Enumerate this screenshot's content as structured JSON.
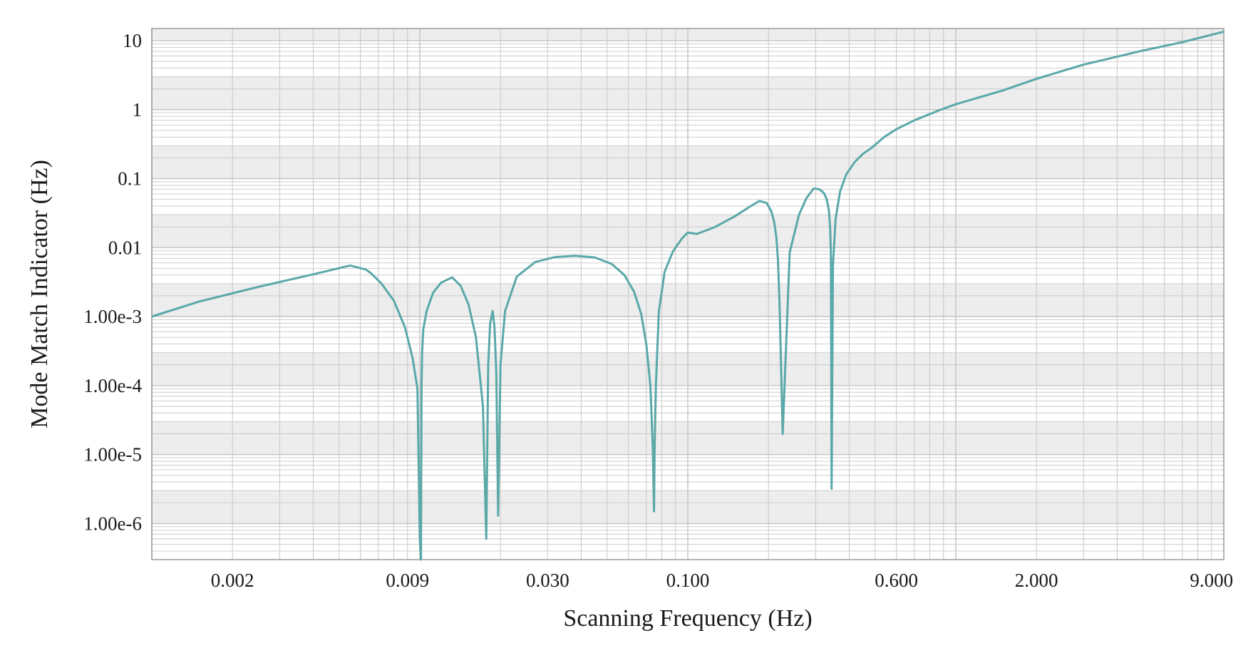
{
  "chart_data": {
    "type": "line",
    "title": "",
    "xlabel": "Scanning Frequency (Hz)",
    "ylabel": "Mode Match Indicator (Hz)",
    "x_scale": "log",
    "y_scale": "log",
    "xlim": [
      0.001,
      10
    ],
    "ylim": [
      3e-07,
      15
    ],
    "grid": true,
    "legend": "none",
    "line_color": "#5aa8a8",
    "band_color": "#ededed",
    "grid_color": "#c8c8c8",
    "x_ticks": [
      {
        "value": 0.002,
        "label": "0.002"
      },
      {
        "value": 0.009,
        "label": "0.009"
      },
      {
        "value": 0.03,
        "label": "0.030"
      },
      {
        "value": 0.1,
        "label": "0.100"
      },
      {
        "value": 0.6,
        "label": "0.600"
      },
      {
        "value": 2,
        "label": "2.000"
      },
      {
        "value": 9,
        "label": "9.000"
      }
    ],
    "y_ticks": [
      {
        "value": 10,
        "label": "10"
      },
      {
        "value": 1,
        "label": "1"
      },
      {
        "value": 0.1,
        "label": "0.1"
      },
      {
        "value": 0.01,
        "label": "0.01"
      },
      {
        "value": 0.001,
        "label": "1.00e-3"
      },
      {
        "value": 0.0001,
        "label": "1.00e-4"
      },
      {
        "value": 1e-05,
        "label": "1.00e-5"
      },
      {
        "value": 1e-06,
        "label": "1.00e-6"
      }
    ],
    "series": [
      {
        "x": [
          0.001,
          0.0015,
          0.0025,
          0.004,
          0.0055,
          0.0063,
          0.0066,
          0.0072,
          0.008,
          0.0088,
          0.0094,
          0.0098,
          0.01,
          0.0101,
          0.01015,
          0.0102,
          0.0103,
          0.0106,
          0.0112,
          0.012,
          0.0132,
          0.0142,
          0.0152,
          0.0162,
          0.0172,
          0.0177,
          0.018,
          0.0183,
          0.0187,
          0.019,
          0.0193,
          0.0196,
          0.02,
          0.0208,
          0.023,
          0.027,
          0.032,
          0.038,
          0.045,
          0.052,
          0.058,
          0.063,
          0.067,
          0.07,
          0.0725,
          0.074,
          0.0748,
          0.0752,
          0.076,
          0.078,
          0.082,
          0.088,
          0.095,
          0.1,
          0.108,
          0.125,
          0.15,
          0.17,
          0.185,
          0.197,
          0.205,
          0.21,
          0.214,
          0.217,
          0.22,
          0.226,
          0.24,
          0.26,
          0.277,
          0.295,
          0.31,
          0.322,
          0.33,
          0.336,
          0.34,
          0.342,
          0.344,
          0.348,
          0.356,
          0.37,
          0.39,
          0.42,
          0.45,
          0.48,
          0.51,
          0.54,
          0.6,
          0.7,
          0.85,
          1.0,
          1.5,
          2.0,
          3.0,
          5.0,
          7.0,
          10.0
        ],
        "y": [
          0.001,
          0.00165,
          0.0027,
          0.0041,
          0.0055,
          0.0048,
          0.0042,
          0.003,
          0.0017,
          0.0007,
          0.00025,
          9e-05,
          6e-07,
          3e-08,
          0.0001,
          0.0003,
          0.00065,
          0.0012,
          0.0022,
          0.0031,
          0.0037,
          0.0028,
          0.0015,
          0.0005,
          5e-05,
          6e-07,
          0.0002,
          0.0008,
          0.0012,
          0.0007,
          0.00015,
          1.3e-06,
          0.0002,
          0.0012,
          0.0038,
          0.0062,
          0.0073,
          0.0076,
          0.0072,
          0.0058,
          0.004,
          0.0023,
          0.0011,
          0.0004,
          0.0001,
          1.3e-05,
          1.5e-06,
          1.3e-05,
          0.0001,
          0.0012,
          0.0045,
          0.0088,
          0.0135,
          0.0165,
          0.0158,
          0.0195,
          0.0285,
          0.039,
          0.0475,
          0.0443,
          0.0335,
          0.0237,
          0.0142,
          0.0067,
          0.0015,
          2e-05,
          0.0085,
          0.03,
          0.052,
          0.072,
          0.07,
          0.062,
          0.05,
          0.035,
          0.0185,
          0.0078,
          3.2e-06,
          0.0055,
          0.026,
          0.065,
          0.115,
          0.175,
          0.228,
          0.271,
          0.33,
          0.4,
          0.52,
          0.7,
          0.95,
          1.2,
          1.9,
          2.8,
          4.5,
          7.2,
          9.5,
          13.5
        ]
      }
    ]
  }
}
